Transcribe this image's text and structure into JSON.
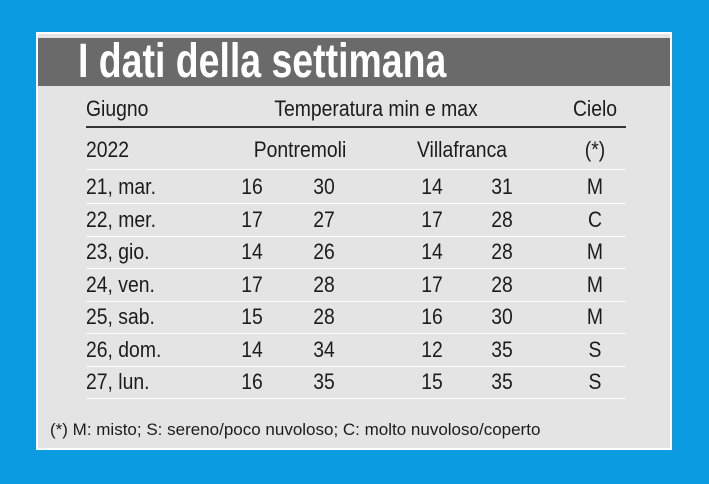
{
  "header": {
    "title": "I dati della settimana"
  },
  "table": {
    "header_rows": [
      [
        "Giugno",
        "Temperatura min e max",
        "Cielo"
      ],
      [
        "2022",
        "Pontremoli",
        "Villafranca",
        "(*)"
      ]
    ],
    "rows": [
      [
        "21, mar.",
        16,
        30,
        14,
        31,
        "M"
      ],
      [
        "22, mer.",
        17,
        27,
        17,
        28,
        "C"
      ],
      [
        "23, gio.",
        14,
        26,
        14,
        28,
        "M"
      ],
      [
        "24, ven.",
        17,
        28,
        17,
        28,
        "M"
      ],
      [
        "25, sab.",
        15,
        28,
        16,
        30,
        "M"
      ],
      [
        "26, dom.",
        14,
        34,
        12,
        35,
        "S"
      ],
      [
        "27, lun.",
        16,
        35,
        15,
        35,
        "S"
      ]
    ]
  },
  "footnote": "(*) M: misto; S: sereno/poco nuvoloso; C: molto nuvoloso/coperto"
}
